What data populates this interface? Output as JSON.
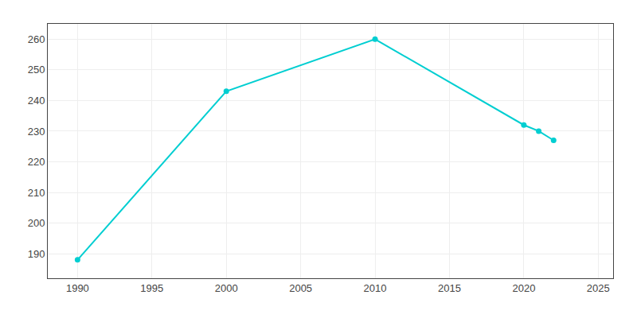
{
  "chart_data": {
    "type": "line",
    "x": [
      1990,
      2000,
      2010,
      2020,
      2021,
      2022
    ],
    "values": [
      188,
      243,
      260,
      232,
      230,
      227
    ],
    "color": "#00CED1",
    "marker": "circle",
    "xlim": [
      1988,
      2026
    ],
    "ylim": [
      182,
      265
    ],
    "xticks": [
      1990,
      1995,
      2000,
      2005,
      2010,
      2015,
      2020,
      2025
    ],
    "yticks": [
      190,
      200,
      210,
      220,
      230,
      240,
      250,
      260
    ],
    "grid": true
  }
}
